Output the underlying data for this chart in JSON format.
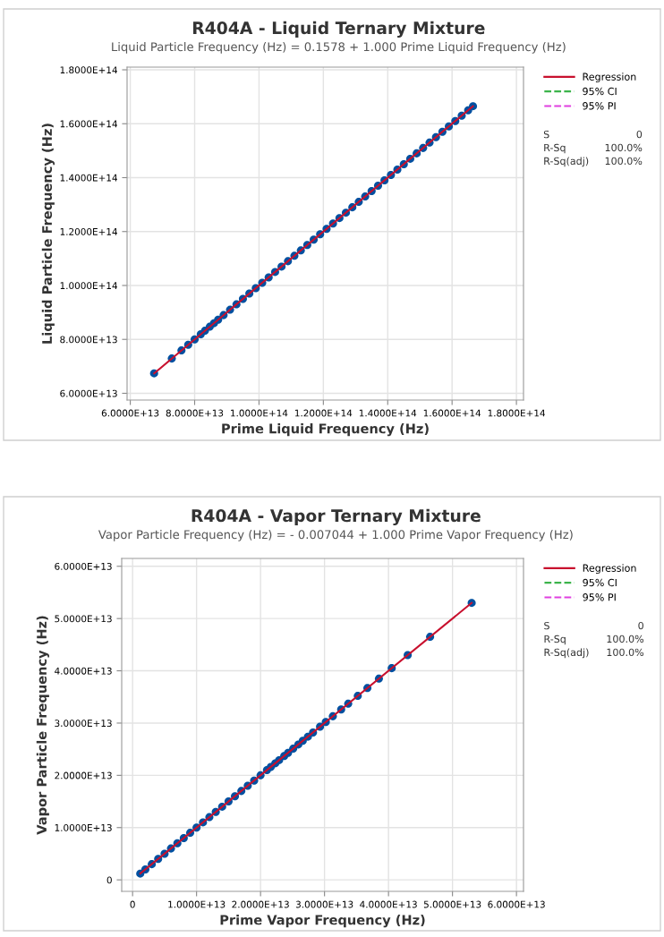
{
  "chart_data": [
    {
      "type": "scatter",
      "title": "R404A - Liquid Ternary Mixture",
      "subtitle": "Liquid Particle Frequency (Hz) = 0.1578 + 1.000 Prime Liquid Frequency (Hz)",
      "xlabel": "Prime Liquid Frequency (Hz)",
      "ylabel": "Liquid Particle Frequency (Hz)",
      "xlim": [
        59000000000000.0,
        182200000000000.0
      ],
      "ylim": [
        57500000000000.0,
        181000000000000.0
      ],
      "xticks": [
        {
          "value": 60000000000000.0,
          "label": "6.0000E+13"
        },
        {
          "value": 80000000000000.0,
          "label": "8.0000E+13"
        },
        {
          "value": 100000000000000.0,
          "label": "1.0000E+14"
        },
        {
          "value": 120000000000000.0,
          "label": "1.2000E+14"
        },
        {
          "value": 140000000000000.0,
          "label": "1.4000E+14"
        },
        {
          "value": 160000000000000.0,
          "label": "1.6000E+14"
        },
        {
          "value": 180000000000000.0,
          "label": "1.8000E+14"
        }
      ],
      "yticks": [
        {
          "value": 60000000000000.0,
          "label": "6.0000E+13"
        },
        {
          "value": 80000000000000.0,
          "label": "8.0000E+13"
        },
        {
          "value": 100000000000000.0,
          "label": "1.0000E+14"
        },
        {
          "value": 120000000000000.0,
          "label": "1.2000E+14"
        },
        {
          "value": 140000000000000.0,
          "label": "1.4000E+14"
        },
        {
          "value": 160000000000000.0,
          "label": "1.6000E+14"
        },
        {
          "value": 180000000000000.0,
          "label": "1.8000E+14"
        }
      ],
      "grid": true,
      "legend": "right",
      "annotations": [
        "S",
        "0",
        "R-Sq",
        "100.0%",
        "R-Sq(adj)",
        "100.0%"
      ],
      "series": [
        {
          "name": "95% PI",
          "type": "line",
          "line_style": "dotted",
          "color": "#e040e0"
        },
        {
          "name": "95% CI",
          "type": "line",
          "line_style": "dashed",
          "color": "#3cb44b"
        },
        {
          "name": "Regression",
          "type": "line",
          "line_style": "solid",
          "color": "#c8102e",
          "x": [
            67400000000000.0,
            166500000000000.0
          ],
          "values": [
            67400000000000.0,
            166500000000000.0
          ]
        },
        {
          "type": "scatter",
          "marker": "circle",
          "color": "#0050a0",
          "x": [
            67400000000000.0,
            72900000000000.0,
            75900000000000.0,
            78000000000000.0,
            80000000000000.0,
            81900000000000.0,
            83200000000000.0,
            84700000000000.0,
            86000000000000.0,
            87300000000000.0,
            89000000000000.0,
            91000000000000.0,
            93000000000000.0,
            95000000000000.0,
            97000000000000.0,
            99000000000000.0,
            101000000000000.0,
            103000000000000.0,
            105000000000000.0,
            107000000000000.0,
            109000000000000.0,
            111000000000000.0,
            113000000000000.0,
            115000000000000.0,
            117000000000000.0,
            119000000000000.0,
            121000000000000.0,
            123000000000000.0,
            125000000000000.0,
            127000000000000.0,
            129000000000000.0,
            131000000000000.0,
            133000000000000.0,
            135000000000000.0,
            137000000000000.0,
            139000000000000.0,
            141000000000000.0,
            143000000000000.0,
            145000000000000.0,
            147000000000000.0,
            149000000000000.0,
            151000000000000.0,
            153000000000000.0,
            155000000000000.0,
            157000000000000.0,
            159000000000000.0,
            161000000000000.0,
            163000000000000.0,
            165000000000000.0,
            166500000000000.0
          ],
          "values": [
            67400000000000.0,
            72900000000000.0,
            75900000000000.0,
            78000000000000.0,
            80000000000000.0,
            81900000000000.0,
            83200000000000.0,
            84700000000000.0,
            86000000000000.0,
            87300000000000.0,
            89000000000000.0,
            91000000000000.0,
            93000000000000.0,
            95000000000000.0,
            97000000000000.0,
            99000000000000.0,
            101000000000000.0,
            103000000000000.0,
            105000000000000.0,
            107000000000000.0,
            109000000000000.0,
            111000000000000.0,
            113000000000000.0,
            115000000000000.0,
            117000000000000.0,
            119000000000000.0,
            121000000000000.0,
            123000000000000.0,
            125000000000000.0,
            127000000000000.0,
            129000000000000.0,
            131000000000000.0,
            133000000000000.0,
            135000000000000.0,
            137000000000000.0,
            139000000000000.0,
            141000000000000.0,
            143000000000000.0,
            145000000000000.0,
            147000000000000.0,
            149000000000000.0,
            151000000000000.0,
            153000000000000.0,
            155000000000000.0,
            157000000000000.0,
            159000000000000.0,
            161000000000000.0,
            163000000000000.0,
            165000000000000.0,
            166500000000000.0
          ]
        }
      ]
    },
    {
      "type": "scatter",
      "title": "R404A - Vapor Ternary Mixture",
      "subtitle": "Vapor Particle Frequency (Hz) = - 0.007044 + 1.000 Prime Vapor Frequency (Hz)",
      "xlabel": "Prime Vapor Frequency (Hz)",
      "ylabel": "Vapor Particle Frequency (Hz)",
      "xlim": [
        -1700000000000.0,
        61100000000000.0
      ],
      "ylim": [
        -2200000000000.0,
        61500000000000.0
      ],
      "xticks": [
        0,
        {
          "value": 10000000000000.0,
          "label": "1.0000E+13"
        },
        {
          "value": 20000000000000.0,
          "label": "2.0000E+13"
        },
        {
          "value": 30000000000000.0,
          "label": "3.0000E+13"
        },
        {
          "value": 40000000000000.0,
          "label": "4.0000E+13"
        },
        {
          "value": 50000000000000.0,
          "label": "5.0000E+13"
        },
        {
          "value": 60000000000000.0,
          "label": "6.0000E+13"
        }
      ],
      "yticks": [
        0,
        {
          "value": 10000000000000.0,
          "label": "1.0000E+13"
        },
        {
          "value": 20000000000000.0,
          "label": "2.0000E+13"
        },
        {
          "value": 30000000000000.0,
          "label": "3.0000E+13"
        },
        {
          "value": 40000000000000.0,
          "label": "4.0000E+13"
        },
        {
          "value": 50000000000000.0,
          "label": "5.0000E+13"
        },
        {
          "value": 60000000000000.0,
          "label": "6.0000E+13"
        }
      ],
      "grid": true,
      "legend": "right",
      "annotations": [
        "S",
        "0",
        "R-Sq",
        "100.0%",
        "R-Sq(adj)",
        "100.0%"
      ],
      "series": [
        {
          "name": "95% PI",
          "type": "line",
          "line_style": "dotted",
          "color": "#e040e0"
        },
        {
          "name": "95% CI",
          "type": "line",
          "line_style": "dashed",
          "color": "#3cb44b"
        },
        {
          "name": "Regression",
          "type": "line",
          "line_style": "solid",
          "color": "#c8102e",
          "x": [
            1200000000000.0,
            53000000000000.0
          ],
          "values": [
            1200000000000.0,
            53000000000000.0
          ]
        },
        {
          "type": "scatter",
          "marker": "circle",
          "color": "#0050a0",
          "x": [
            1200000000000.0,
            2000000000000.0,
            3000000000000.0,
            4000000000000.0,
            5000000000000.0,
            6000000000000.0,
            7000000000000.0,
            8000000000000.0,
            9000000000000.0,
            10000000000000.0,
            11000000000000.0,
            12000000000000.0,
            13000000000000.0,
            14000000000000.0,
            15000000000000.0,
            16000000000000.0,
            17000000000000.0,
            18000000000000.0,
            19000000000000.0,
            20000000000000.0,
            21000000000000.0,
            21600000000000.0,
            22300000000000.0,
            22900000000000.0,
            23700000000000.0,
            24300000000000.0,
            25100000000000.0,
            25900000000000.0,
            26600000000000.0,
            27400000000000.0,
            28200000000000.0,
            29300000000000.0,
            30200000000000.0,
            31300000000000.0,
            32600000000000.0,
            33700000000000.0,
            35200000000000.0,
            36700000000000.0,
            38500000000000.0,
            40500000000000.0,
            43000000000000.0,
            46500000000000.0,
            53000000000000.0
          ],
          "values": [
            1200000000000.0,
            2000000000000.0,
            3000000000000.0,
            4000000000000.0,
            5000000000000.0,
            6000000000000.0,
            7000000000000.0,
            8000000000000.0,
            9000000000000.0,
            10000000000000.0,
            11000000000000.0,
            12000000000000.0,
            13000000000000.0,
            14000000000000.0,
            15000000000000.0,
            16000000000000.0,
            17000000000000.0,
            18000000000000.0,
            19000000000000.0,
            20000000000000.0,
            21000000000000.0,
            21600000000000.0,
            22300000000000.0,
            22900000000000.0,
            23700000000000.0,
            24300000000000.0,
            25100000000000.0,
            25900000000000.0,
            26600000000000.0,
            27400000000000.0,
            28200000000000.0,
            29300000000000.0,
            30200000000000.0,
            31300000000000.0,
            32600000000000.0,
            33700000000000.0,
            35200000000000.0,
            36700000000000.0,
            38500000000000.0,
            40500000000000.0,
            43000000000000.0,
            46500000000000.0,
            53000000000000.0
          ]
        }
      ]
    }
  ]
}
